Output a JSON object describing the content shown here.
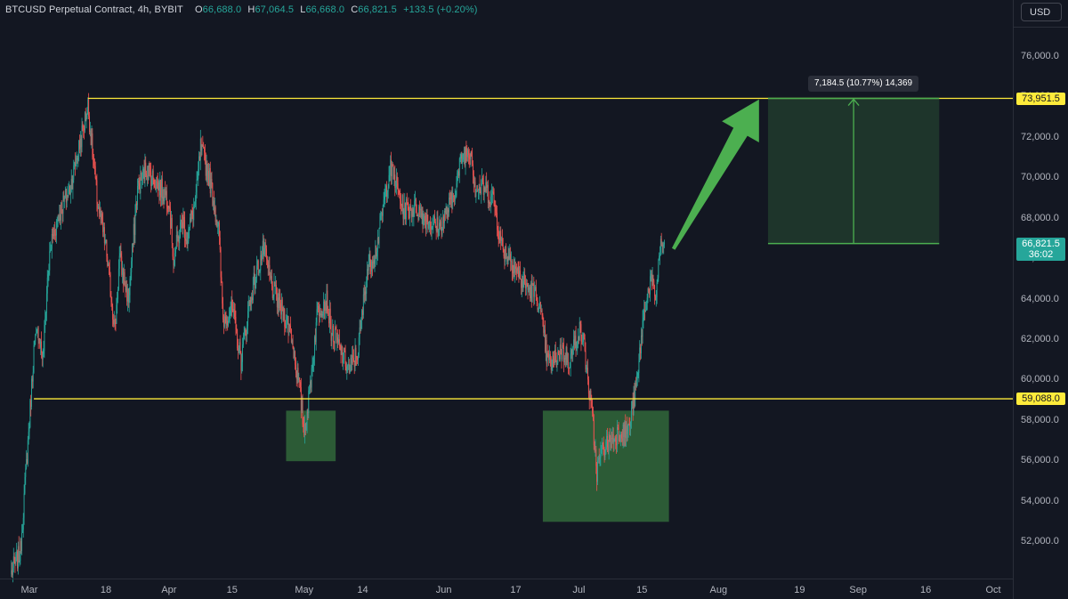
{
  "symbol_bar": {
    "title": "BTCUSD Perpetual Contract, 4h, BYBIT",
    "o_key": "O",
    "o_val": "66,688.0",
    "h_key": "H",
    "h_val": "67,064.5",
    "l_key": "L",
    "l_val": "66,668.0",
    "c_key": "C",
    "c_val": "66,821.5",
    "change": "+133.5 (+0.20%)"
  },
  "currency_button": "USD",
  "tags": {
    "resistance": "73,951.5",
    "support": "59,088.0",
    "last_price": "66,821.5",
    "countdown": "36:02"
  },
  "measure_label": "7,184.5 (10.77%) 14,369",
  "colors": {
    "background": "#131722",
    "up_candle": "#26a69a",
    "down_candle": "#ef5350",
    "level_line": "#ffeb3b",
    "zone_fill": "#4caf50",
    "arrow": "#4caf50",
    "last_price_tag": "#26a69a"
  },
  "chart_data": {
    "type": "candlestick",
    "title": "BTCUSD Perpetual Contract, 4h, BYBIT",
    "xlabel": "",
    "ylabel": "",
    "ylim": [
      50000,
      77000
    ],
    "y_ticks": [
      52000,
      54000,
      56000,
      58000,
      60000,
      62000,
      64000,
      66000,
      68000,
      70000,
      72000,
      74000,
      76000
    ],
    "y_tick_labels": [
      "52,000.0",
      "54,000.0",
      "56,000.0",
      "58,000.0",
      "60,000.0",
      "62,000.0",
      "64,000.0",
      "66,000.0",
      "68,000.0",
      "70,000.0",
      "72,000.0",
      "74,000.0",
      "76,000.0"
    ],
    "x_range": [
      "2024-02-28",
      "2024-10-03"
    ],
    "x_ticks": [
      {
        "date": "2024-03-01",
        "label": "Mar"
      },
      {
        "date": "2024-03-18",
        "label": "18"
      },
      {
        "date": "2024-04-01",
        "label": "Apr"
      },
      {
        "date": "2024-04-15",
        "label": "15"
      },
      {
        "date": "2024-05-01",
        "label": "May"
      },
      {
        "date": "2024-05-14",
        "label": "14"
      },
      {
        "date": "2024-06-01",
        "label": "Jun"
      },
      {
        "date": "2024-06-17",
        "label": "17"
      },
      {
        "date": "2024-07-01",
        "label": "Jul"
      },
      {
        "date": "2024-07-15",
        "label": "15"
      },
      {
        "date": "2024-08-01",
        "label": "Aug"
      },
      {
        "date": "2024-08-19",
        "label": "19"
      },
      {
        "date": "2024-09-01",
        "label": "Sep"
      },
      {
        "date": "2024-09-16",
        "label": "16"
      },
      {
        "date": "2024-10-01",
        "label": "Oct"
      }
    ],
    "price_path": [
      [
        "2024-02-26",
        50500
      ],
      [
        "2024-02-28",
        51500
      ],
      [
        "2024-03-01",
        58000
      ],
      [
        "2024-03-02",
        61500
      ],
      [
        "2024-03-03",
        62500
      ],
      [
        "2024-03-04",
        61000
      ],
      [
        "2024-03-05",
        65000
      ],
      [
        "2024-03-06",
        67000
      ],
      [
        "2024-03-08",
        68500
      ],
      [
        "2024-03-10",
        69500
      ],
      [
        "2024-03-12",
        71500
      ],
      [
        "2024-03-14",
        73600
      ],
      [
        "2024-03-16",
        69000
      ],
      [
        "2024-03-18",
        66500
      ],
      [
        "2024-03-20",
        62500
      ],
      [
        "2024-03-21",
        66000
      ],
      [
        "2024-03-23",
        64000
      ],
      [
        "2024-03-25",
        69500
      ],
      [
        "2024-03-27",
        70500
      ],
      [
        "2024-03-29",
        69800
      ],
      [
        "2024-04-01",
        69000
      ],
      [
        "2024-04-02",
        66000
      ],
      [
        "2024-04-04",
        68000
      ],
      [
        "2024-04-05",
        67000
      ],
      [
        "2024-04-07",
        69000
      ],
      [
        "2024-04-08",
        71500
      ],
      [
        "2024-04-10",
        70000
      ],
      [
        "2024-04-12",
        67500
      ],
      [
        "2024-04-13",
        63000
      ],
      [
        "2024-04-15",
        63500
      ],
      [
        "2024-04-17",
        61000
      ],
      [
        "2024-04-19",
        64000
      ],
      [
        "2024-04-20",
        65000
      ],
      [
        "2024-04-22",
        66500
      ],
      [
        "2024-04-24",
        64500
      ],
      [
        "2024-04-26",
        63500
      ],
      [
        "2024-04-28",
        62500
      ],
      [
        "2024-04-30",
        59500
      ],
      [
        "2024-05-01",
        57500
      ],
      [
        "2024-05-02",
        59000
      ],
      [
        "2024-05-04",
        63500
      ],
      [
        "2024-05-06",
        64000
      ],
      [
        "2024-05-07",
        62500
      ],
      [
        "2024-05-09",
        61500
      ],
      [
        "2024-05-11",
        60500
      ],
      [
        "2024-05-13",
        61500
      ],
      [
        "2024-05-15",
        65500
      ],
      [
        "2024-05-17",
        66500
      ],
      [
        "2024-05-20",
        70500
      ],
      [
        "2024-05-21",
        70000
      ],
      [
        "2024-05-23",
        68500
      ],
      [
        "2024-05-26",
        68500
      ],
      [
        "2024-05-28",
        68000
      ],
      [
        "2024-05-31",
        67500
      ],
      [
        "2024-06-03",
        69000
      ],
      [
        "2024-06-05",
        71000
      ],
      [
        "2024-06-07",
        71500
      ],
      [
        "2024-06-08",
        69500
      ],
      [
        "2024-06-10",
        69500
      ],
      [
        "2024-06-12",
        69000
      ],
      [
        "2024-06-14",
        66500
      ],
      [
        "2024-06-16",
        66000
      ],
      [
        "2024-06-18",
        65000
      ],
      [
        "2024-06-20",
        64500
      ],
      [
        "2024-06-22",
        64000
      ],
      [
        "2024-06-24",
        61000
      ],
      [
        "2024-06-25",
        60800
      ],
      [
        "2024-06-27",
        61500
      ],
      [
        "2024-06-29",
        61000
      ],
      [
        "2024-07-01",
        62500
      ],
      [
        "2024-07-02",
        62000
      ],
      [
        "2024-07-04",
        58000
      ],
      [
        "2024-07-05",
        55500
      ],
      [
        "2024-07-06",
        56500
      ],
      [
        "2024-07-08",
        57000
      ],
      [
        "2024-07-10",
        57500
      ],
      [
        "2024-07-12",
        57500
      ],
      [
        "2024-07-14",
        60000
      ],
      [
        "2024-07-15",
        62500
      ],
      [
        "2024-07-16",
        64000
      ],
      [
        "2024-07-17",
        65000
      ],
      [
        "2024-07-18",
        64000
      ],
      [
        "2024-07-19",
        66500
      ],
      [
        "2024-07-20",
        66821.5
      ]
    ],
    "horizontal_levels": [
      {
        "label": "73,951.5",
        "price": 73951.5,
        "from": "2024-03-14"
      },
      {
        "label": "59,088.0",
        "price": 59088.0,
        "from": "2024-03-02"
      }
    ],
    "zones": [
      {
        "x0": "2024-04-27",
        "x1": "2024-05-08",
        "y0": 56000,
        "y1": 58500
      },
      {
        "x0": "2024-06-23",
        "x1": "2024-07-21",
        "y0": 53000,
        "y1": 58500
      }
    ],
    "projection": {
      "x0": "2024-08-12",
      "x1": "2024-09-19",
      "y0": 66767,
      "y1": 73951.5,
      "change": 7184.5,
      "change_pct": 10.77,
      "bars": 14369
    },
    "arrow": {
      "from": [
        "2024-07-22",
        66500
      ],
      "to": [
        "2024-08-10",
        73900
      ]
    },
    "last_price": 66821.5,
    "countdown": "36:02"
  }
}
